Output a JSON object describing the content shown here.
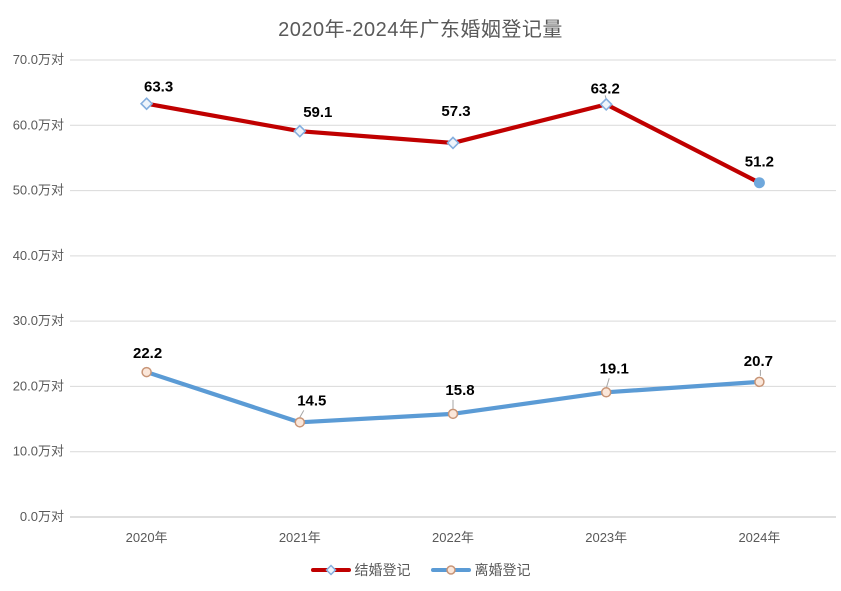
{
  "chart_data": {
    "type": "line",
    "title": "2020年-2024年广东婚姻登记量",
    "categories": [
      "2020年",
      "2021年",
      "2022年",
      "2023年",
      "2024年"
    ],
    "series": [
      {
        "name": "结婚登记",
        "values": [
          63.3,
          59.1,
          57.3,
          63.2,
          51.2
        ],
        "color": "#c00000",
        "marker": "diamond"
      },
      {
        "name": "离婚登记",
        "values": [
          22.2,
          14.5,
          15.8,
          19.1,
          20.7
        ],
        "color": "#5b9bd5",
        "marker": "circle"
      }
    ],
    "y_ticks": [
      "0.0万对",
      "10.0万对",
      "20.0万对",
      "30.0万对",
      "40.0万对",
      "50.0万对",
      "60.0万对",
      "70.0万对"
    ],
    "ylim": [
      0,
      70
    ],
    "y_step": 10,
    "grid": true,
    "legend_position": "bottom",
    "data_labels": true
  },
  "colors": {
    "title_text": "#595959",
    "axis_text": "#595959",
    "gridline": "#d9d9d9",
    "axis_line": "#bfbfbf",
    "data_label_text": "#000000",
    "marriage_line": "#c00000",
    "marriage_marker_fill": "#eef4fb",
    "marriage_marker_stroke": "#84aede",
    "marriage_last_point_fill": "#6fa8dc",
    "divorce_line": "#5b9bd5",
    "divorce_marker_fill": "#fbe7da",
    "divorce_marker_stroke": "#c89577",
    "leader_line": "#a6a6a6",
    "background": "#ffffff"
  }
}
